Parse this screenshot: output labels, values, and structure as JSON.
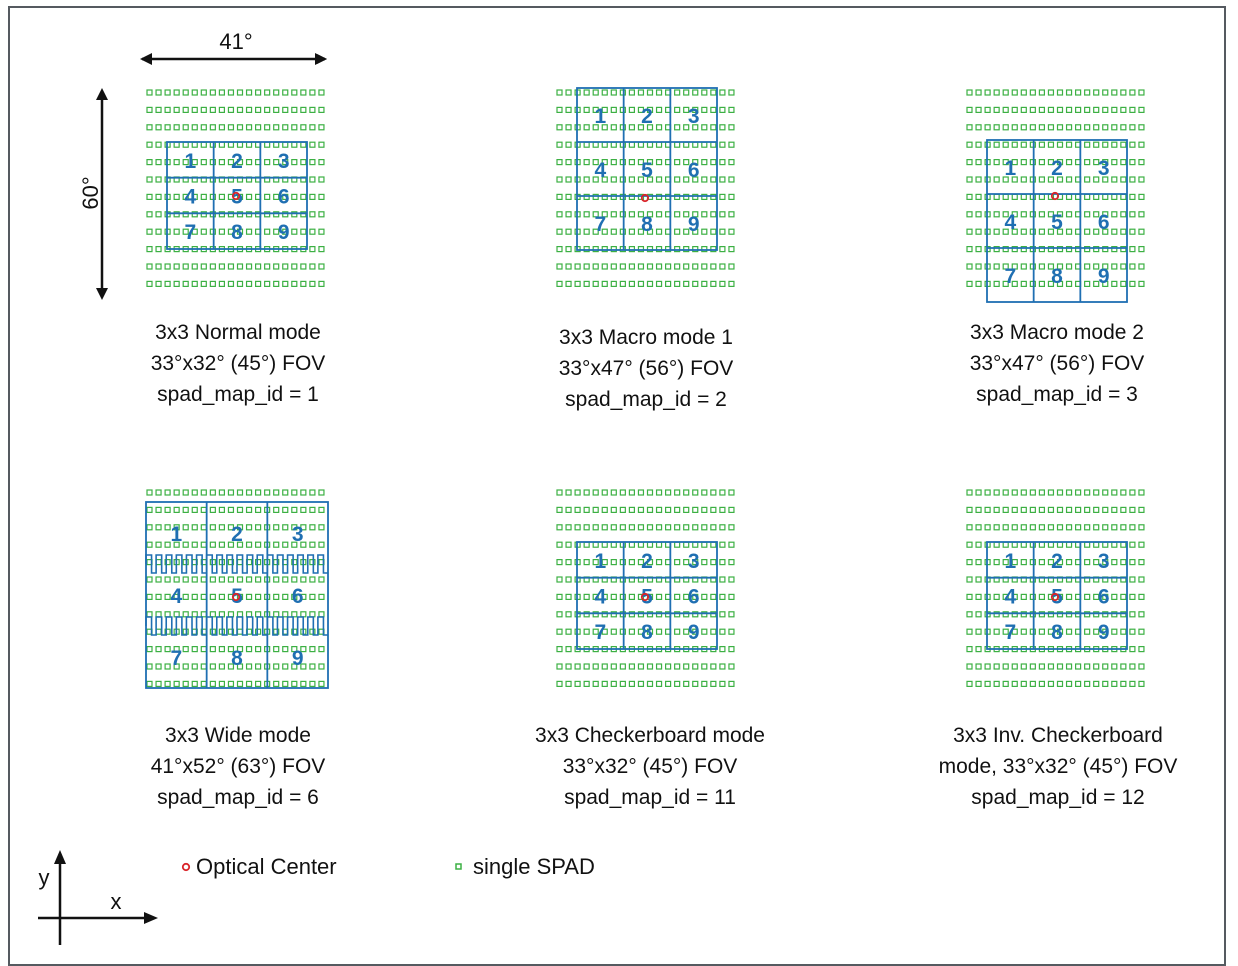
{
  "colors": {
    "spad": "#3cb043",
    "zone": "#1f6fb2",
    "zone_label": "#1f6fb2",
    "optical_center": "#d9262b",
    "frame": "#555a60",
    "arrow": "#111111"
  },
  "dimensions": {
    "width_label": "41°",
    "height_label": "60°"
  },
  "diagrams": [
    {
      "id": "normal",
      "lines": [
        "3x3 Normal mode",
        "33°x32° (45°) FOV",
        "spad_map_id = 1"
      ],
      "zones": [
        "1",
        "2",
        "3",
        "4",
        "5",
        "6",
        "7",
        "8",
        "9"
      ]
    },
    {
      "id": "macro1",
      "lines": [
        "3x3 Macro mode 1",
        "33°x47° (56°) FOV",
        "spad_map_id = 2"
      ],
      "zones": [
        "1",
        "2",
        "3",
        "4",
        "5",
        "6",
        "7",
        "8",
        "9"
      ]
    },
    {
      "id": "macro2",
      "lines": [
        "3x3 Macro mode 2",
        "33°x47° (56°) FOV",
        "spad_map_id = 3"
      ],
      "zones": [
        "1",
        "2",
        "3",
        "4",
        "5",
        "6",
        "7",
        "8",
        "9"
      ]
    },
    {
      "id": "wide",
      "lines": [
        "3x3 Wide mode",
        "41°x52° (63°) FOV",
        "spad_map_id = 6"
      ],
      "zones": [
        "1",
        "2",
        "3",
        "4",
        "5",
        "6",
        "7",
        "8",
        "9"
      ]
    },
    {
      "id": "checker",
      "lines": [
        "3x3 Checkerboard mode",
        "33°x32° (45°) FOV",
        "spad_map_id = 11"
      ],
      "zones": [
        "1",
        "2",
        "3",
        "4",
        "5",
        "6",
        "7",
        "8",
        "9"
      ]
    },
    {
      "id": "invchecker",
      "lines": [
        "3x3 Inv. Checkerboard",
        "mode, 33°x32° (45°) FOV",
        "spad_map_id = 12"
      ],
      "zones": [
        "1",
        "2",
        "3",
        "4",
        "5",
        "6",
        "7",
        "8",
        "9"
      ]
    }
  ],
  "legend": {
    "optical_center": "Optical Center",
    "single_spad": "single SPAD"
  },
  "axes": {
    "x": "x",
    "y": "y"
  }
}
